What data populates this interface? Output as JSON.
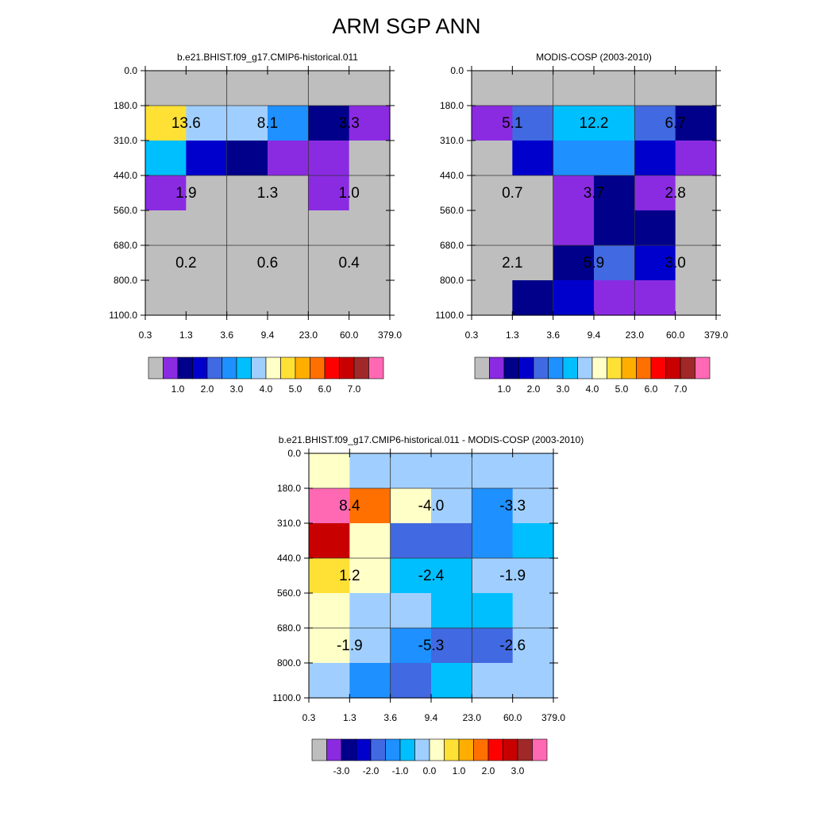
{
  "page": {
    "title": "ARM SGP ANN"
  },
  "palette": {
    "missing": "#bebebe",
    "abs_colors": [
      "#bebebe",
      "#8a2be2",
      "#00008b",
      "#0000cd",
      "#4169e1",
      "#1e90ff",
      "#00bfff",
      "#a0cfff",
      "#ffffc8",
      "#ffe135",
      "#ffae00",
      "#ff7000",
      "#ff0000",
      "#c80000",
      "#a02828",
      "#ff69b4"
    ],
    "diff_colors": [
      "#bebebe",
      "#8a2be2",
      "#00008b",
      "#0000cd",
      "#4169e1",
      "#1e90ff",
      "#00bfff",
      "#a0cfff",
      "#ffffc8",
      "#ffe135",
      "#ffae00",
      "#ff7000",
      "#ff0000",
      "#c80000",
      "#a02828",
      "#ff69b4"
    ]
  },
  "chart_data": [
    {
      "type": "heatmap",
      "title": "b.e21.BHIST.f09_g17.CMIP6-historical.011",
      "x_ticks": [
        "0.3",
        "1.3",
        "3.6",
        "9.4",
        "23.0",
        "60.0",
        "379.0"
      ],
      "y_ticks": [
        "0.0",
        "180.0",
        "310.0",
        "440.0",
        "560.0",
        "680.0",
        "800.0",
        "1100.0"
      ],
      "cells": [
        [
          0,
          0,
          0,
          0,
          0,
          0
        ],
        [
          9,
          7,
          7,
          5,
          2,
          1
        ],
        [
          6,
          3,
          2,
          1,
          1,
          0
        ],
        [
          1,
          0,
          0,
          0,
          1,
          0
        ],
        [
          0,
          0,
          0,
          0,
          0,
          0
        ],
        [
          0,
          0,
          0,
          0,
          0,
          0
        ],
        [
          0,
          0,
          0,
          0,
          0,
          0
        ]
      ],
      "block_labels": [
        [
          "13.6",
          "8.1",
          "3.3"
        ],
        [
          "1.9",
          "1.3",
          "1.0"
        ],
        [
          "0.2",
          "0.6",
          "0.4"
        ]
      ],
      "colorbar_labels": [
        "1.0",
        "2.0",
        "3.0",
        "4.0",
        "5.0",
        "6.0",
        "7.0"
      ]
    },
    {
      "type": "heatmap",
      "title": "MODIS-COSP (2003-2010)",
      "x_ticks": [
        "0.3",
        "1.3",
        "3.6",
        "9.4",
        "23.0",
        "60.0",
        "379.0"
      ],
      "y_ticks": [
        "0.0",
        "180.0",
        "310.0",
        "440.0",
        "560.0",
        "680.0",
        "800.0",
        "1100.0"
      ],
      "cells": [
        [
          0,
          0,
          0,
          0,
          0,
          0
        ],
        [
          1,
          4,
          6,
          6,
          4,
          2
        ],
        [
          0,
          3,
          5,
          5,
          3,
          1
        ],
        [
          0,
          0,
          1,
          2,
          1,
          0
        ],
        [
          0,
          0,
          1,
          2,
          2,
          0
        ],
        [
          0,
          0,
          2,
          4,
          3,
          0
        ],
        [
          0,
          2,
          3,
          1,
          1,
          0
        ]
      ],
      "block_labels": [
        [
          "5.1",
          "12.2",
          "6.7"
        ],
        [
          "0.7",
          "3.7",
          "2.8"
        ],
        [
          "2.1",
          "5.9",
          "3.0"
        ]
      ],
      "colorbar_labels": [
        "1.0",
        "2.0",
        "3.0",
        "4.0",
        "5.0",
        "6.0",
        "7.0"
      ]
    },
    {
      "type": "heatmap",
      "title": "b.e21.BHIST.f09_g17.CMIP6-historical.011 - MODIS-COSP (2003-2010)",
      "x_ticks": [
        "0.3",
        "1.3",
        "3.6",
        "9.4",
        "23.0",
        "60.0",
        "379.0"
      ],
      "y_ticks": [
        "0.0",
        "180.0",
        "310.0",
        "440.0",
        "560.0",
        "680.0",
        "800.0",
        "1100.0"
      ],
      "cells": [
        [
          8,
          7,
          7,
          7,
          7,
          7
        ],
        [
          15,
          11,
          8,
          7,
          5,
          7
        ],
        [
          13,
          8,
          4,
          4,
          5,
          6
        ],
        [
          9,
          8,
          6,
          6,
          7,
          7
        ],
        [
          8,
          7,
          7,
          6,
          6,
          7
        ],
        [
          8,
          7,
          5,
          4,
          4,
          7
        ],
        [
          7,
          5,
          4,
          6,
          7,
          7
        ]
      ],
      "block_labels": [
        [
          "8.4",
          "-4.0",
          "-3.3"
        ],
        [
          "1.2",
          "-2.4",
          "-1.9"
        ],
        [
          "-1.9",
          "-5.3",
          "-2.6"
        ]
      ],
      "colorbar_labels": [
        "-3.0",
        "-2.0",
        "-1.0",
        "0.0",
        "1.0",
        "2.0",
        "3.0"
      ]
    }
  ]
}
